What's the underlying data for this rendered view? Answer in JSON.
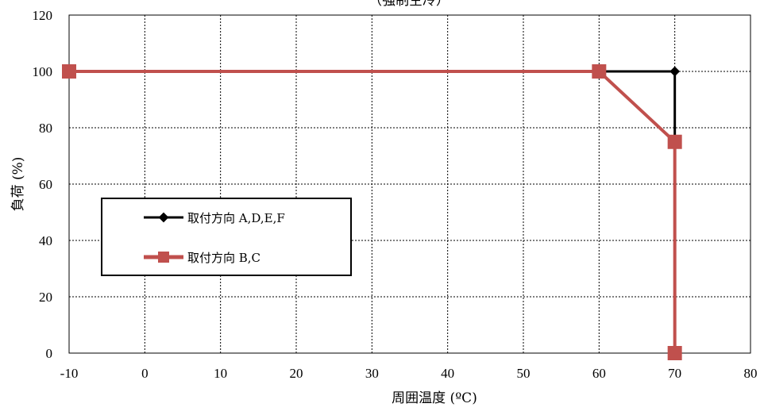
{
  "chart_data": {
    "type": "line",
    "title": "（強制空冷）",
    "xlabel": "周囲温度 (ºC)",
    "ylabel": "負荷 (%)",
    "xlim": [
      -10,
      80
    ],
    "ylim": [
      0,
      120
    ],
    "xticks": [
      -10,
      0,
      10,
      20,
      30,
      40,
      50,
      60,
      70,
      80
    ],
    "yticks": [
      0,
      20,
      40,
      60,
      80,
      100,
      120
    ],
    "grid": true,
    "legend_position": "left-center",
    "series": [
      {
        "name": "取付方向 A,D,E,F",
        "color": "#000000",
        "marker": "diamond",
        "points": [
          [
            -10,
            100
          ],
          [
            60,
            100
          ],
          [
            70,
            100
          ],
          [
            70,
            75
          ],
          [
            70,
            0
          ]
        ]
      },
      {
        "name": "取付方向 B,C",
        "color": "#c0504d",
        "marker": "square",
        "points": [
          [
            -10,
            100
          ],
          [
            60,
            100
          ],
          [
            70,
            75
          ],
          [
            70,
            0
          ]
        ]
      }
    ]
  }
}
